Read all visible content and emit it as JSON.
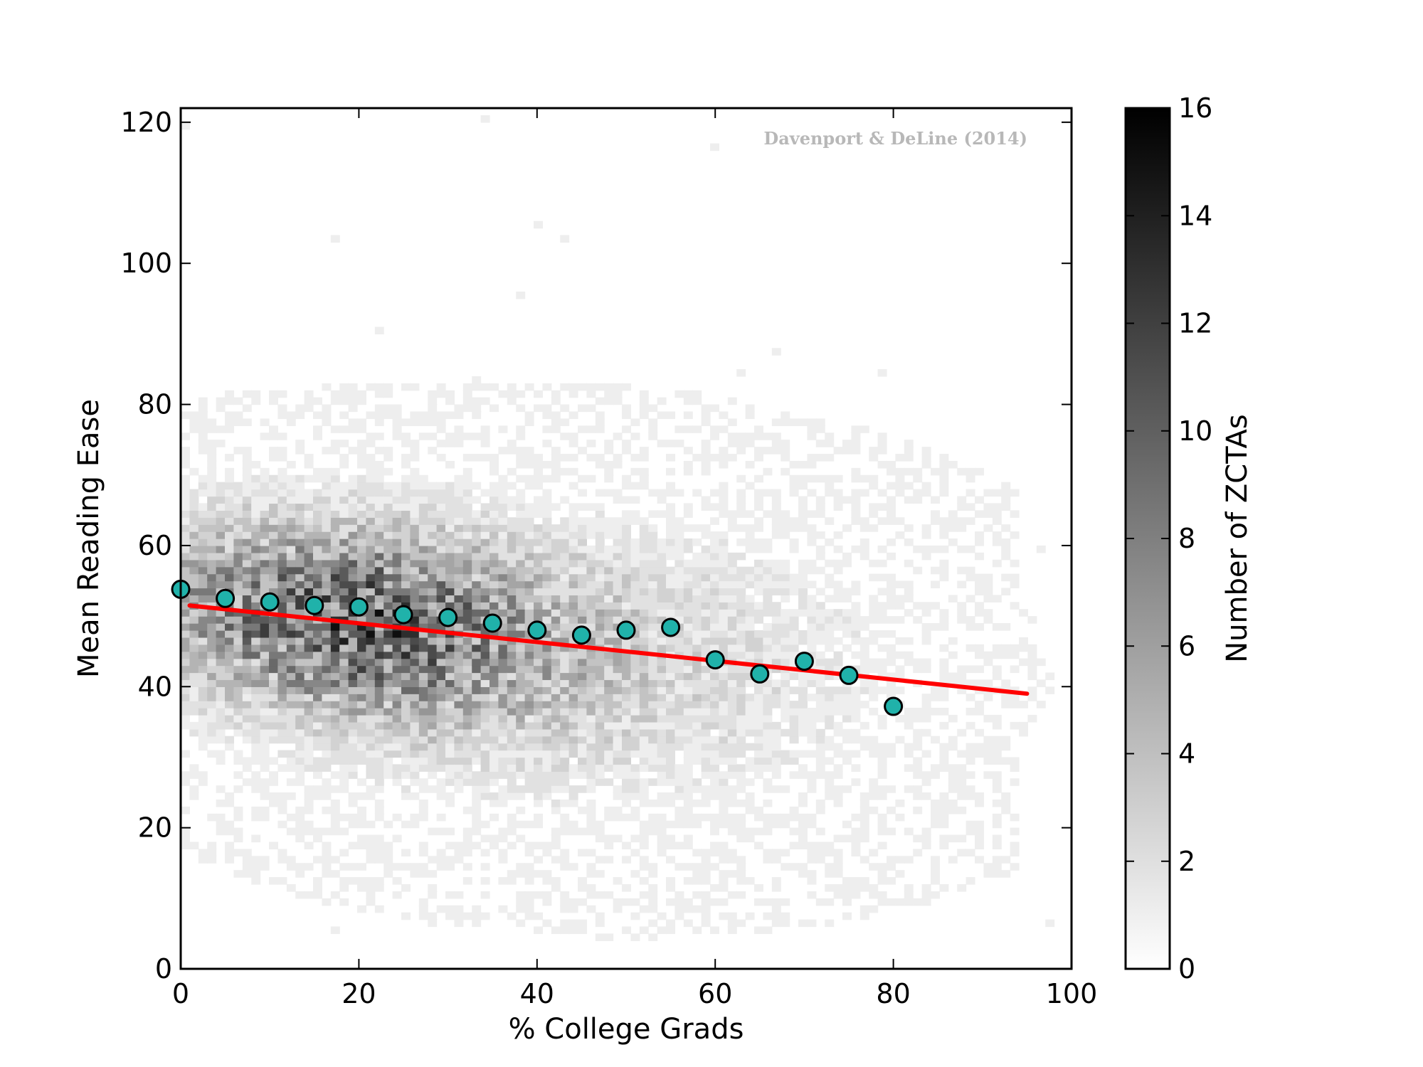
{
  "chart_data": {
    "type": "scatter",
    "title": "",
    "xlabel": "% College Grads",
    "ylabel": "Mean Reading Ease",
    "xlim": [
      0,
      100
    ],
    "ylim": [
      0,
      122
    ],
    "x_ticks": [
      "0",
      "20",
      "40",
      "60",
      "80",
      "100"
    ],
    "y_ticks": [
      "0",
      "20",
      "40",
      "60",
      "80",
      "100",
      "120"
    ],
    "grid": false,
    "watermark": "Davenport & DeLine (2014)",
    "background": "2D histogram (hexbin-like) of ZCTAs, greyscale density",
    "colorbar": {
      "label": "Number of ZCTAs",
      "range": [
        0,
        16
      ],
      "ticks": [
        "0",
        "2",
        "4",
        "6",
        "8",
        "10",
        "12",
        "14",
        "16"
      ],
      "color_low": "#ffffff",
      "color_high": "#000000"
    },
    "binned_means": {
      "color": "#20b2aa",
      "x": [
        0,
        5,
        10,
        15,
        20,
        25,
        30,
        35,
        40,
        45,
        50,
        55,
        60,
        65,
        70,
        75,
        80
      ],
      "y": [
        53.8,
        52.5,
        52.0,
        51.5,
        51.3,
        50.2,
        49.8,
        49.0,
        48.0,
        47.3,
        48.0,
        48.4,
        43.8,
        41.8,
        43.6,
        41.6,
        37.2
      ]
    },
    "fit_line": {
      "color": "#ff0000",
      "x": [
        1,
        95
      ],
      "y": [
        51.5,
        39.0
      ]
    }
  }
}
